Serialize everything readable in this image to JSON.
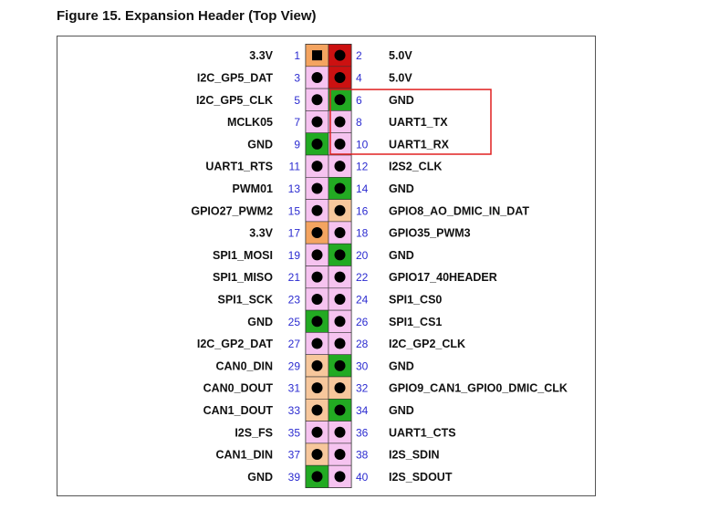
{
  "figure": {
    "title": "Figure 15.  Expansion Header (Top View)"
  },
  "colors": {
    "power_3v3": "#f4a460",
    "power_5v": "#cc1111",
    "ground": "#22aa22",
    "gpio_odd": "#f7c79c",
    "gpio_even": "#f6c3f0",
    "highlight": "#e02020",
    "pin_dot": "#000000",
    "number": "#2b2bd0"
  },
  "pins": [
    {
      "left_label": "3.3V",
      "left_num": "1",
      "left_type": "p3",
      "right_num": "2",
      "right_label": "5.0V",
      "right_type": "p5"
    },
    {
      "left_label": "I2C_GP5_DAT",
      "left_num": "3",
      "left_type": "sig",
      "right_num": "4",
      "right_label": "5.0V",
      "right_type": "p5"
    },
    {
      "left_label": "I2C_GP5_CLK",
      "left_num": "5",
      "left_type": "sig",
      "right_num": "6",
      "right_label": "GND",
      "right_type": "gnd"
    },
    {
      "left_label": "MCLK05",
      "left_num": "7",
      "left_type": "sig",
      "right_num": "8",
      "right_label": "UART1_TX",
      "right_type": "sig"
    },
    {
      "left_label": "GND",
      "left_num": "9",
      "left_type": "gnd",
      "right_num": "10",
      "right_label": "UART1_RX",
      "right_type": "sig"
    },
    {
      "left_label": "UART1_RTS",
      "left_num": "11",
      "left_type": "sig",
      "right_num": "12",
      "right_label": "I2S2_CLK",
      "right_type": "sig"
    },
    {
      "left_label": "PWM01",
      "left_num": "13",
      "left_type": "sig",
      "right_num": "14",
      "right_label": "GND",
      "right_type": "gnd"
    },
    {
      "left_label": "GPIO27_PWM2",
      "left_num": "15",
      "left_type": "sig",
      "right_num": "16",
      "right_label": "GPIO8_AO_DMIC_IN_DAT",
      "right_type": "alt"
    },
    {
      "left_label": "3.3V",
      "left_num": "17",
      "left_type": "p3",
      "right_num": "18",
      "right_label": "GPIO35_PWM3",
      "right_type": "sig"
    },
    {
      "left_label": "SPI1_MOSI",
      "left_num": "19",
      "left_type": "sig",
      "right_num": "20",
      "right_label": "GND",
      "right_type": "gnd"
    },
    {
      "left_label": "SPI1_MISO",
      "left_num": "21",
      "left_type": "sig",
      "right_num": "22",
      "right_label": "GPIO17_40HEADER",
      "right_type": "sig"
    },
    {
      "left_label": "SPI1_SCK",
      "left_num": "23",
      "left_type": "sig",
      "right_num": "24",
      "right_label": "SPI1_CS0",
      "right_type": "sig"
    },
    {
      "left_label": "GND",
      "left_num": "25",
      "left_type": "gnd",
      "right_num": "26",
      "right_label": "SPI1_CS1",
      "right_type": "sig"
    },
    {
      "left_label": "I2C_GP2_DAT",
      "left_num": "27",
      "left_type": "sig",
      "right_num": "28",
      "right_label": "I2C_GP2_CLK",
      "right_type": "sig"
    },
    {
      "left_label": "CAN0_DIN",
      "left_num": "29",
      "left_type": "alt",
      "right_num": "30",
      "right_label": "GND",
      "right_type": "gnd"
    },
    {
      "left_label": "CAN0_DOUT",
      "left_num": "31",
      "left_type": "alt",
      "right_num": "32",
      "right_label": "GPIO9_CAN1_GPIO0_DMIC_CLK",
      "right_type": "alt"
    },
    {
      "left_label": "CAN1_DOUT",
      "left_num": "33",
      "left_type": "alt",
      "right_num": "34",
      "right_label": "GND",
      "right_type": "gnd"
    },
    {
      "left_label": "I2S_FS",
      "left_num": "35",
      "left_type": "sig",
      "right_num": "36",
      "right_label": "UART1_CTS",
      "right_type": "sig"
    },
    {
      "left_label": "CAN1_DIN",
      "left_num": "37",
      "left_type": "alt",
      "right_num": "38",
      "right_label": "I2S_SDIN",
      "right_type": "sig"
    },
    {
      "left_label": "GND",
      "left_num": "39",
      "left_type": "gnd",
      "right_num": "40",
      "right_label": "I2S_SDOUT",
      "right_type": "sig"
    }
  ],
  "highlight_box": {
    "from_pin_row": 3,
    "to_pin_row": 5
  }
}
